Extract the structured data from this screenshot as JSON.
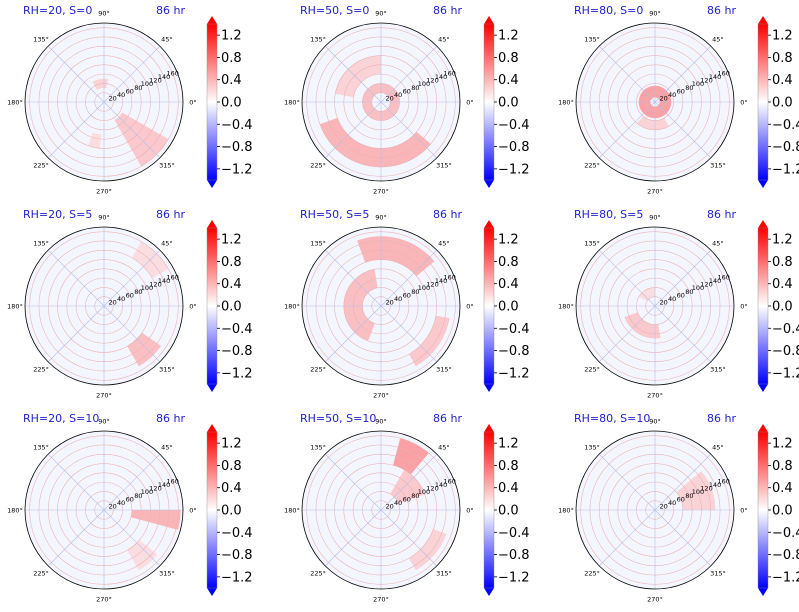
{
  "figure": {
    "time_label": "86 hr",
    "colors": {
      "title": "#1f1fcf",
      "positive": "#ff0000",
      "negative": "#0000ff",
      "mid": "#ffffff"
    }
  },
  "chart_data": [
    {
      "type": "heatmap",
      "projection": "polar",
      "title": "RH=20, S=0",
      "annotation": "86 hr",
      "rh": 20,
      "s": 0,
      "radial_ticks": [
        20,
        40,
        60,
        80,
        100,
        120,
        140,
        160
      ],
      "angular_ticks": [
        "0°",
        "45°",
        "90°",
        "135°",
        "180°",
        "225°",
        "270°",
        "315°"
      ],
      "r_range": [
        0,
        170
      ],
      "colorbar": {
        "ticks": [
          1.2,
          0.8,
          0.4,
          0.0,
          -0.4,
          -0.8,
          -1.2
        ],
        "range": [
          -1.4,
          1.4
        ]
      },
      "features": [
        {
          "r": [
            45,
            160
          ],
          "theta": [
            300,
            330
          ],
          "value": 0.5
        },
        {
          "r": [
            30,
            50
          ],
          "theta": [
            80,
            120
          ],
          "value": 0.4
        },
        {
          "r": [
            70,
            100
          ],
          "theta": [
            250,
            265
          ],
          "value": 0.3
        }
      ]
    },
    {
      "type": "heatmap",
      "projection": "polar",
      "title": "RH=50, S=0",
      "annotation": "86 hr",
      "rh": 50,
      "s": 0,
      "radial_ticks": [
        20,
        40,
        60,
        80,
        100,
        120,
        140,
        160
      ],
      "angular_ticks": [
        "0°",
        "45°",
        "90°",
        "135°",
        "180°",
        "225°",
        "270°",
        "315°"
      ],
      "r_range": [
        0,
        170
      ],
      "colorbar": {
        "ticks": [
          1.2,
          0.8,
          0.4,
          0.0,
          -0.4,
          -0.8,
          -1.2
        ],
        "range": [
          -1.4,
          1.4
        ]
      },
      "features": [
        {
          "r": [
            20,
            40
          ],
          "theta": [
            0,
            360
          ],
          "value": 0.6
        },
        {
          "r": [
            100,
            140
          ],
          "theta": [
            200,
            320
          ],
          "value": 0.7
        },
        {
          "r": [
            60,
            100
          ],
          "theta": [
            90,
            170
          ],
          "value": 0.4
        }
      ]
    },
    {
      "type": "heatmap",
      "projection": "polar",
      "title": "RH=80, S=0",
      "annotation": "86 hr",
      "rh": 80,
      "s": 0,
      "radial_ticks": [
        20,
        40,
        60,
        80,
        100,
        120,
        140,
        160
      ],
      "angular_ticks": [
        "0°",
        "45°",
        "90°",
        "135°",
        "180°",
        "225°",
        "270°",
        "315°"
      ],
      "r_range": [
        0,
        170
      ],
      "colorbar": {
        "ticks": [
          1.2,
          0.8,
          0.4,
          0.0,
          -0.4,
          -0.8,
          -1.2
        ],
        "range": [
          -1.4,
          1.4
        ]
      },
      "features": [
        {
          "r": [
            10,
            35
          ],
          "theta": [
            0,
            360
          ],
          "value": 0.9
        },
        {
          "r": [
            40,
            60
          ],
          "theta": [
            230,
            300
          ],
          "value": 0.4
        }
      ]
    },
    {
      "type": "heatmap",
      "projection": "polar",
      "title": "RH=20, S=5",
      "annotation": "86 hr",
      "rh": 20,
      "s": 5,
      "radial_ticks": [
        20,
        40,
        60,
        80,
        100,
        120,
        140,
        160
      ],
      "angular_ticks": [
        "0°",
        "45°",
        "90°",
        "135°",
        "180°",
        "225°",
        "270°",
        "315°"
      ],
      "r_range": [
        0,
        170
      ],
      "colorbar": {
        "ticks": [
          1.2,
          0.8,
          0.4,
          0.0,
          -0.4,
          -0.8,
          -1.2
        ],
        "range": [
          -1.4,
          1.4
        ]
      },
      "features": [
        {
          "r": [
            100,
            150
          ],
          "theta": [
            300,
            325
          ],
          "value": 0.6
        },
        {
          "r": [
            120,
            160
          ],
          "theta": [
            30,
            60
          ],
          "value": 0.3
        }
      ]
    },
    {
      "type": "heatmap",
      "projection": "polar",
      "title": "RH=50, S=5",
      "annotation": "86 hr",
      "rh": 50,
      "s": 5,
      "radial_ticks": [
        20,
        40,
        60,
        80,
        100,
        120,
        140,
        160
      ],
      "angular_ticks": [
        "0°",
        "45°",
        "90°",
        "135°",
        "180°",
        "225°",
        "270°",
        "315°"
      ],
      "r_range": [
        0,
        170
      ],
      "colorbar": {
        "ticks": [
          1.2,
          0.8,
          0.4,
          0.0,
          -0.4,
          -0.8,
          -1.2
        ],
        "range": [
          -1.4,
          1.4
        ]
      },
      "features": [
        {
          "r": [
            40,
            80
          ],
          "theta": [
            100,
            250
          ],
          "value": 0.6
        },
        {
          "r": [
            100,
            150
          ],
          "theta": [
            40,
            110
          ],
          "value": 0.7
        },
        {
          "r": [
            120,
            150
          ],
          "theta": [
            300,
            350
          ],
          "value": 0.5
        }
      ]
    },
    {
      "type": "heatmap",
      "projection": "polar",
      "title": "RH=80, S=5",
      "annotation": "86 hr",
      "rh": 80,
      "s": 5,
      "radial_ticks": [
        20,
        40,
        60,
        80,
        100,
        120,
        140,
        160
      ],
      "angular_ticks": [
        "0°",
        "45°",
        "90°",
        "135°",
        "180°",
        "225°",
        "270°",
        "315°"
      ],
      "r_range": [
        0,
        170
      ],
      "colorbar": {
        "ticks": [
          1.2,
          0.8,
          0.4,
          0.0,
          -0.4,
          -0.8,
          -1.2
        ],
        "range": [
          -1.4,
          1.4
        ]
      },
      "features": [
        {
          "r": [
            40,
            70
          ],
          "theta": [
            200,
            280
          ],
          "value": 0.5
        },
        {
          "r": [
            20,
            40
          ],
          "theta": [
            90,
            150
          ],
          "value": 0.3
        }
      ]
    },
    {
      "type": "heatmap",
      "projection": "polar",
      "title": "RH=20, S=10",
      "annotation": "86 hr",
      "rh": 20,
      "s": 10,
      "radial_ticks": [
        20,
        40,
        60,
        80,
        100,
        120,
        140,
        160
      ],
      "angular_ticks": [
        "0°",
        "45°",
        "90°",
        "135°",
        "180°",
        "225°",
        "270°",
        "315°"
      ],
      "r_range": [
        0,
        170
      ],
      "colorbar": {
        "ticks": [
          1.2,
          0.8,
          0.4,
          0.0,
          -0.4,
          -0.8,
          -1.2
        ],
        "range": [
          -1.4,
          1.4
        ]
      },
      "features": [
        {
          "r": [
            60,
            165
          ],
          "theta": [
            345,
            360
          ],
          "value": 0.7
        },
        {
          "r": [
            100,
            150
          ],
          "theta": [
            300,
            320
          ],
          "value": 0.3
        }
      ]
    },
    {
      "type": "heatmap",
      "projection": "polar",
      "title": "RH=50, S=10",
      "annotation": "86 hr",
      "rh": 50,
      "s": 10,
      "radial_ticks": [
        20,
        40,
        60,
        80,
        100,
        120,
        140,
        160
      ],
      "angular_ticks": [
        "0°",
        "45°",
        "90°",
        "135°",
        "180°",
        "225°",
        "270°",
        "315°"
      ],
      "r_range": [
        0,
        170
      ],
      "colorbar": {
        "ticks": [
          1.2,
          0.8,
          0.4,
          0.0,
          -0.4,
          -0.8,
          -1.2
        ],
        "range": [
          -1.4,
          1.4
        ]
      },
      "features": [
        {
          "r": [
            100,
            160
          ],
          "theta": [
            50,
            75
          ],
          "value": 0.9
        },
        {
          "r": [
            40,
            100
          ],
          "theta": [
            20,
            60
          ],
          "value": 0.5
        },
        {
          "r": [
            120,
            150
          ],
          "theta": [
            300,
            340
          ],
          "value": 0.4
        }
      ]
    },
    {
      "type": "heatmap",
      "projection": "polar",
      "title": "RH=80, S=10",
      "annotation": "86 hr",
      "rh": 80,
      "s": 10,
      "radial_ticks": [
        20,
        40,
        60,
        80,
        100,
        120,
        140,
        160
      ],
      "angular_ticks": [
        "0°",
        "45°",
        "90°",
        "135°",
        "180°",
        "225°",
        "270°",
        "315°"
      ],
      "r_range": [
        0,
        170
      ],
      "colorbar": {
        "ticks": [
          1.2,
          0.8,
          0.4,
          0.0,
          -0.4,
          -0.8,
          -1.2
        ],
        "range": [
          -1.4,
          1.4
        ]
      },
      "features": [
        {
          "r": [
            60,
            130
          ],
          "theta": [
            0,
            40
          ],
          "value": 0.4
        }
      ]
    }
  ]
}
